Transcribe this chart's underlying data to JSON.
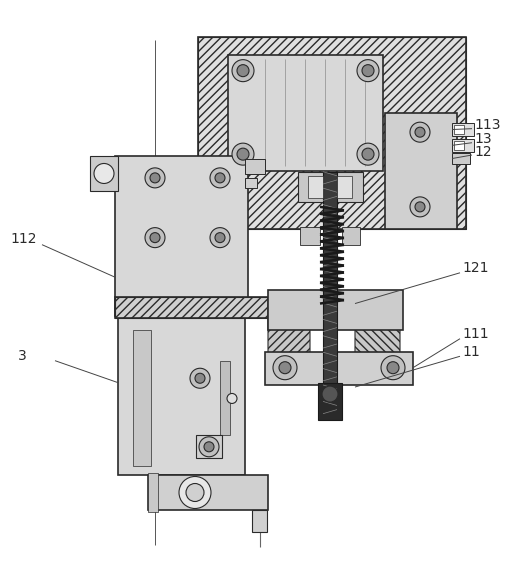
{
  "bg_color": "#ffffff",
  "lc": "#2a2a2a",
  "lc_ann": "#555555",
  "fc_light": "#e8e8e8",
  "fc_mid": "#d0d0d0",
  "fc_dark": "#b0b0b0",
  "fc_black": "#1a1a1a",
  "fc_hatch_bg": "#dcdcdc",
  "label_fs": 10,
  "figsize": [
    5.15,
    5.86
  ],
  "dpi": 100
}
